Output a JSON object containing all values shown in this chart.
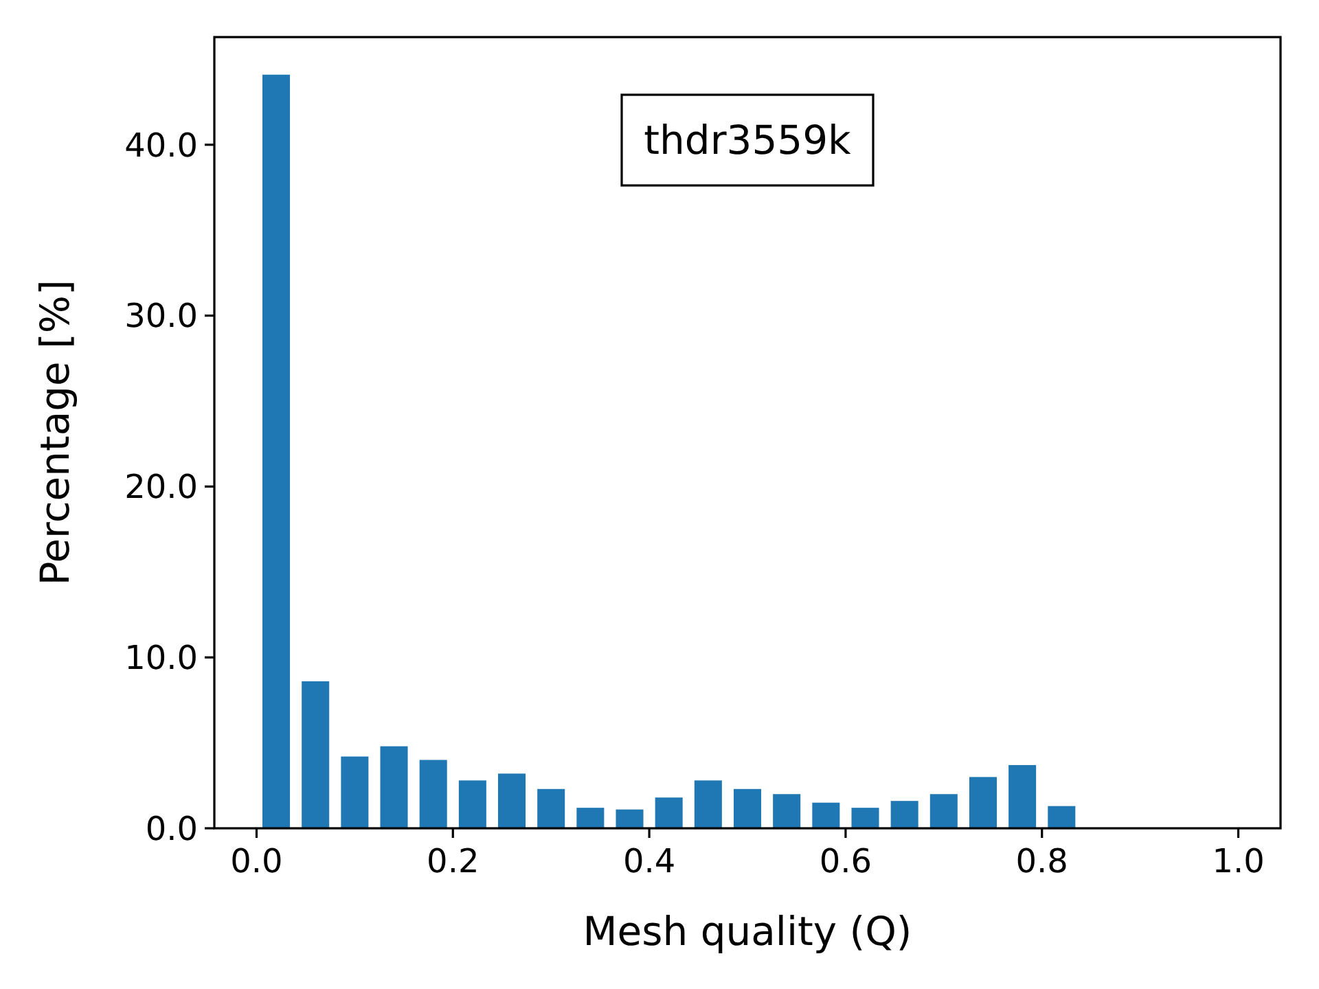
{
  "chart_data": {
    "type": "histogram",
    "xlabel": "Mesh quality (Q)",
    "ylabel": "Percentage [%]",
    "annotations": [
      "thdr3559k"
    ],
    "bins": [
      0,
      0.04,
      0.08,
      0.12,
      0.16,
      0.2,
      0.24,
      0.28,
      0.32,
      0.36,
      0.4,
      0.44,
      0.48,
      0.52,
      0.56,
      0.6,
      0.64,
      0.68,
      0.72,
      0.76,
      0.8,
      0.84,
      0.88,
      0.92,
      0.96,
      1.0
    ],
    "values": [
      44.1,
      8.6,
      4.2,
      4.8,
      4.0,
      2.8,
      3.2,
      2.3,
      1.2,
      1.1,
      1.8,
      2.8,
      2.3,
      2.0,
      1.5,
      1.2,
      1.6,
      2.0,
      3.0,
      3.7,
      1.3,
      0,
      0,
      0,
      0
    ],
    "color": "#1f77b4",
    "xlim": [
      -0.043,
      1.043
    ],
    "ylim": [
      0,
      46.3
    ],
    "xticks": [
      {
        "value": 0,
        "label": "0.0"
      },
      {
        "value": 0.2,
        "label": "0.2"
      },
      {
        "value": 0.4,
        "label": "0.4"
      },
      {
        "value": 0.6,
        "label": "0.6"
      },
      {
        "value": 0.8,
        "label": "0.8"
      },
      {
        "value": 1,
        "label": "1.0"
      }
    ],
    "yticks": [
      {
        "value": 0,
        "label": "0.0"
      },
      {
        "value": 10,
        "label": "10.0"
      },
      {
        "value": 20,
        "label": "20.0"
      },
      {
        "value": 30,
        "label": "30.0"
      },
      {
        "value": 40,
        "label": "40.0"
      }
    ],
    "grid": false
  }
}
